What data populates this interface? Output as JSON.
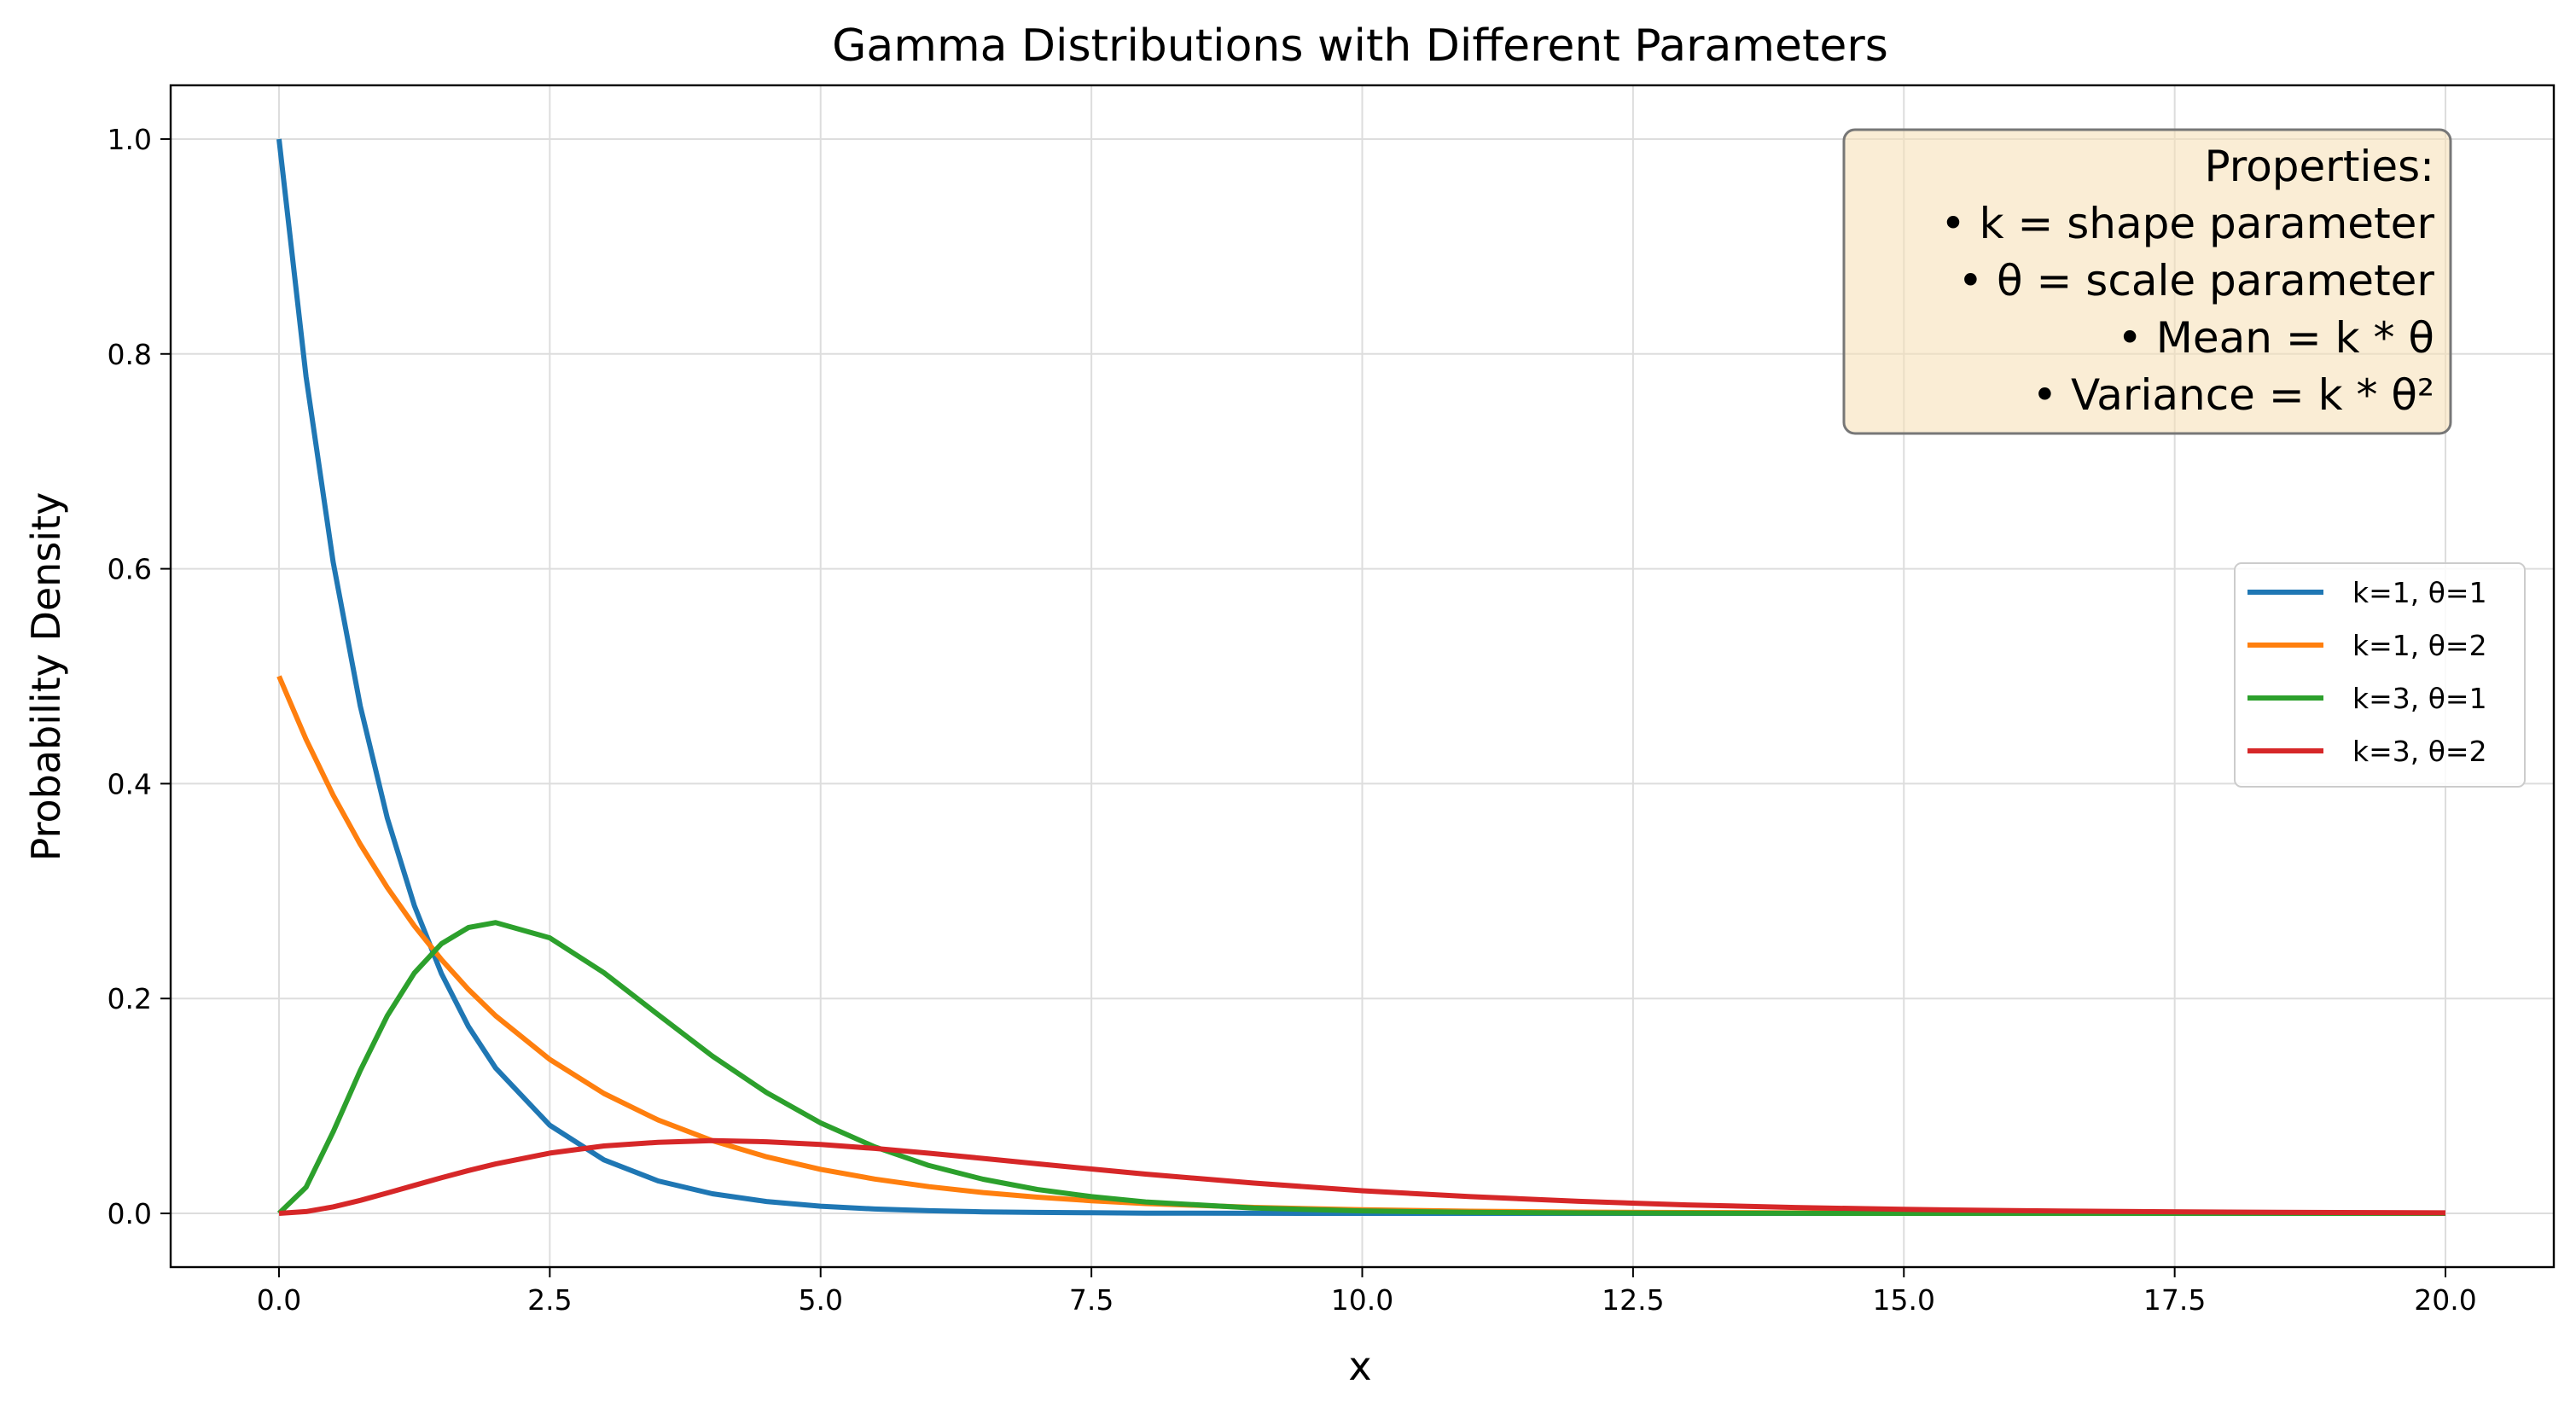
{
  "chart_data": {
    "type": "line",
    "title": "Gamma Distributions with Different Parameters",
    "xlabel": "x",
    "ylabel": "Probability Density",
    "xlim": [
      -1.0,
      21.0
    ],
    "ylim": [
      -0.05,
      1.05
    ],
    "x_ticks": [
      0.0,
      2.5,
      5.0,
      7.5,
      10.0,
      12.5,
      15.0,
      17.5,
      20.0
    ],
    "x_tick_labels": [
      "0.0",
      "2.5",
      "5.0",
      "7.5",
      "10.0",
      "12.5",
      "15.0",
      "17.5",
      "20.0"
    ],
    "y_ticks": [
      0.0,
      0.2,
      0.4,
      0.6,
      0.8,
      1.0
    ],
    "y_tick_labels": [
      "0.0",
      "0.2",
      "0.4",
      "0.6",
      "0.8",
      "1.0"
    ],
    "grid": true,
    "legend_position": "center-right",
    "x": [
      0,
      0.25,
      0.5,
      0.75,
      1,
      1.25,
      1.5,
      1.75,
      2,
      2.5,
      3,
      3.5,
      4,
      4.5,
      5,
      5.5,
      6,
      6.5,
      7,
      7.5,
      8,
      9,
      10,
      11,
      12,
      13,
      14,
      15,
      16,
      17,
      18,
      19,
      20
    ],
    "series": [
      {
        "name": "k=1, θ=1",
        "color": "#1f77b4",
        "values": [
          1.0,
          0.7788,
          0.6065,
          0.4724,
          0.3679,
          0.2865,
          0.2231,
          0.1738,
          0.1353,
          0.0821,
          0.0498,
          0.0302,
          0.0183,
          0.0111,
          0.0067,
          0.0041,
          0.0025,
          0.0015,
          0.0009,
          0.0006,
          0.0003,
          0.0001,
          0.0,
          0.0,
          0.0,
          0.0,
          0.0,
          0.0,
          0.0,
          0.0,
          0.0,
          0.0,
          0.0
        ]
      },
      {
        "name": "k=1, θ=2",
        "color": "#ff7f0e",
        "values": [
          0.5,
          0.4412,
          0.3894,
          0.3436,
          0.3033,
          0.2676,
          0.2362,
          0.2084,
          0.1839,
          0.1433,
          0.1116,
          0.0869,
          0.0677,
          0.0527,
          0.041,
          0.032,
          0.0249,
          0.0194,
          0.0151,
          0.0118,
          0.0092,
          0.0056,
          0.0034,
          0.002,
          0.0012,
          0.0008,
          0.0005,
          0.0003,
          0.0002,
          0.0001,
          0.0001,
          0.0,
          0.0
        ]
      },
      {
        "name": "k=3, θ=1",
        "color": "#2ca02c",
        "values": [
          0.0,
          0.0243,
          0.0758,
          0.1329,
          0.1839,
          0.2238,
          0.251,
          0.2661,
          0.2707,
          0.2565,
          0.224,
          0.185,
          0.1465,
          0.1125,
          0.0842,
          0.0619,
          0.0446,
          0.0318,
          0.0223,
          0.0156,
          0.0107,
          0.005,
          0.0023,
          0.001,
          0.0004,
          0.0002,
          0.0001,
          0.0,
          0.0,
          0.0,
          0.0,
          0.0,
          0.0
        ]
      },
      {
        "name": "k=3, θ=2",
        "color": "#d62728",
        "values": [
          0.0,
          0.0017,
          0.0061,
          0.0121,
          0.019,
          0.0261,
          0.0332,
          0.0399,
          0.046,
          0.0561,
          0.0628,
          0.0662,
          0.0677,
          0.0667,
          0.0641,
          0.0605,
          0.056,
          0.0512,
          0.0462,
          0.0413,
          0.0366,
          0.0282,
          0.0211,
          0.0156,
          0.0112,
          0.0079,
          0.0055,
          0.0038,
          0.0026,
          0.0018,
          0.0012,
          0.0008,
          0.0005
        ]
      }
    ],
    "annotation": {
      "lines": [
        "Properties:",
        "• k = shape parameter",
        "• θ = scale parameter",
        "• Mean = k * θ",
        "• Variance = k * θ²"
      ],
      "background": "#f5deb3",
      "position": "top-right"
    }
  }
}
